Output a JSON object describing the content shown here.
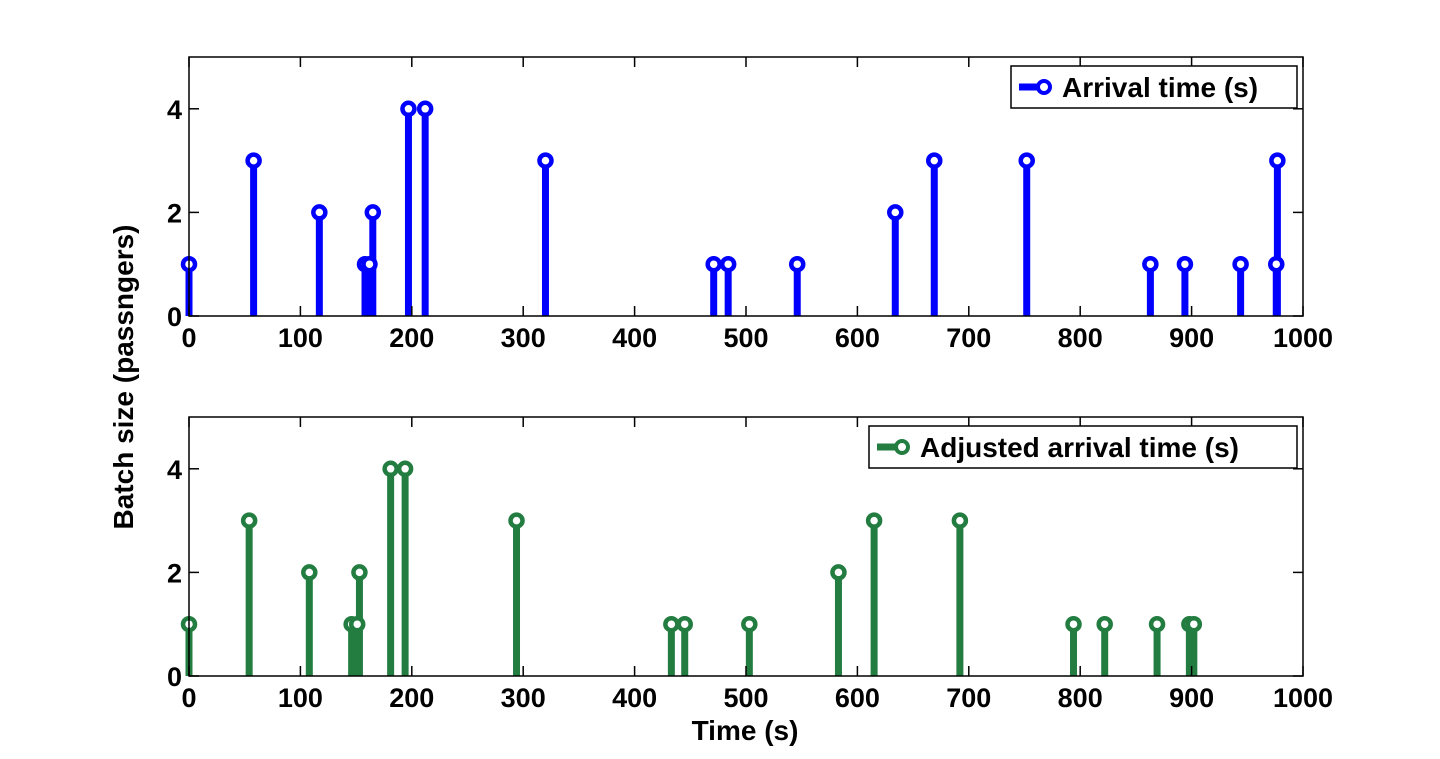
{
  "chart_data": [
    {
      "type": "stem",
      "xlabel": "",
      "ylabel": "",
      "xlim": [
        0,
        1000
      ],
      "ylim": [
        0,
        5
      ],
      "xticks": [
        "0",
        "100",
        "200",
        "300",
        "400",
        "500",
        "600",
        "700",
        "800",
        "900",
        "1000"
      ],
      "yticks": [
        "0",
        "2",
        "4"
      ],
      "grid": false,
      "legend_position": "top-right",
      "series": [
        {
          "name": "Arrival time (s)",
          "color": "#0000FF",
          "x": [
            0,
            58,
            117,
            158,
            162,
            165,
            197,
            212,
            320,
            471,
            484,
            546,
            634,
            669,
            752,
            863,
            894,
            944,
            976,
            977
          ],
          "y": [
            1,
            3,
            2,
            1,
            1,
            2,
            4,
            4,
            3,
            1,
            1,
            1,
            2,
            3,
            3,
            1,
            1,
            1,
            1,
            3
          ]
        }
      ]
    },
    {
      "type": "stem",
      "xlabel": "Time (s)",
      "ylabel": "",
      "xlim": [
        0,
        1000
      ],
      "ylim": [
        0,
        5
      ],
      "xticks": [
        "0",
        "100",
        "200",
        "300",
        "400",
        "500",
        "600",
        "700",
        "800",
        "900",
        "1000"
      ],
      "yticks": [
        "0",
        "2",
        "4"
      ],
      "grid": false,
      "legend_position": "top-right",
      "series": [
        {
          "name": "Adjusted arrival time (s)",
          "color": "#237D41",
          "x": [
            0,
            54,
            108,
            146,
            151,
            153,
            181,
            194,
            294,
            433,
            445,
            503,
            583,
            615,
            692,
            794,
            822,
            869,
            898,
            902
          ],
          "y": [
            1,
            3,
            2,
            1,
            1,
            2,
            4,
            4,
            3,
            1,
            1,
            1,
            2,
            3,
            3,
            1,
            1,
            1,
            1,
            1
          ]
        }
      ]
    }
  ],
  "shared_ylabel": "Batch size (passngers)"
}
